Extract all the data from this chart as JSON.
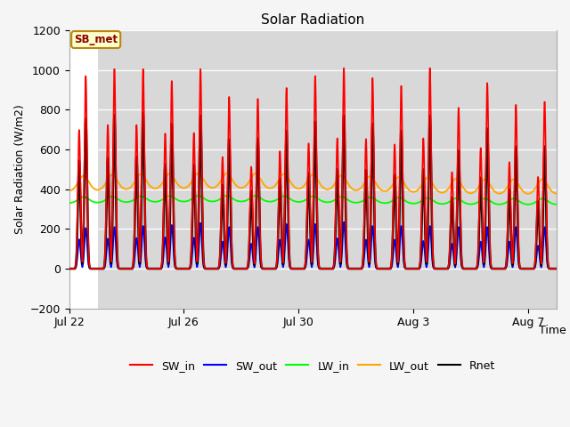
{
  "title": "Solar Radiation",
  "ylabel": "Solar Radiation (W/m2)",
  "xlabel": "Time",
  "ylim": [
    -200,
    1200
  ],
  "yticks": [
    -200,
    0,
    200,
    400,
    600,
    800,
    1000,
    1200
  ],
  "n_days": 17,
  "station_label": "SB_met",
  "legend_entries": [
    "SW_in",
    "SW_out",
    "LW_in",
    "LW_out",
    "Rnet"
  ],
  "line_colors": [
    "red",
    "blue",
    "lime",
    "orange",
    "black"
  ],
  "xtick_labels": [
    "Jul 22",
    "Jul 26",
    "Jul 30",
    "Aug 3",
    "Aug 7"
  ],
  "xtick_day_offsets": [
    0,
    4,
    8,
    12,
    16
  ],
  "sw_in_peaks": [
    970,
    1005,
    1005,
    945,
    1005,
    865,
    855,
    910,
    970,
    1010,
    960,
    920,
    1010,
    810,
    935,
    825,
    840
  ],
  "sw_in_morning_ratio": [
    0.72,
    0.72,
    0.72,
    0.72,
    0.68,
    0.65,
    0.6,
    0.65,
    0.65,
    0.65,
    0.68,
    0.68,
    0.65,
    0.6,
    0.65,
    0.65,
    0.55
  ],
  "sw_out_peaks": [
    205,
    210,
    215,
    220,
    230,
    210,
    210,
    225,
    225,
    235,
    215,
    215,
    215,
    210,
    210,
    210,
    210
  ],
  "sw_out_morning_ratio": [
    0.72,
    0.72,
    0.72,
    0.72,
    0.68,
    0.65,
    0.6,
    0.65,
    0.65,
    0.65,
    0.68,
    0.68,
    0.65,
    0.6,
    0.65,
    0.65,
    0.55
  ],
  "lw_in_base": 330,
  "lw_in_amp": 30,
  "lw_out_base": 390,
  "lw_out_amp": 75,
  "rnet_peaks": [
    755,
    775,
    785,
    730,
    770,
    650,
    655,
    695,
    740,
    770,
    730,
    695,
    770,
    595,
    705,
    615,
    615
  ],
  "rnet_morning_ratio": [
    0.72,
    0.72,
    0.72,
    0.72,
    0.68,
    0.65,
    0.6,
    0.65,
    0.65,
    0.65,
    0.68,
    0.68,
    0.65,
    0.6,
    0.65,
    0.65,
    0.55
  ],
  "points_per_day": 288,
  "plot_bg": "#e8e8e8",
  "band_color": "#d8d8d8",
  "figure_bg": "#f5f5f5"
}
